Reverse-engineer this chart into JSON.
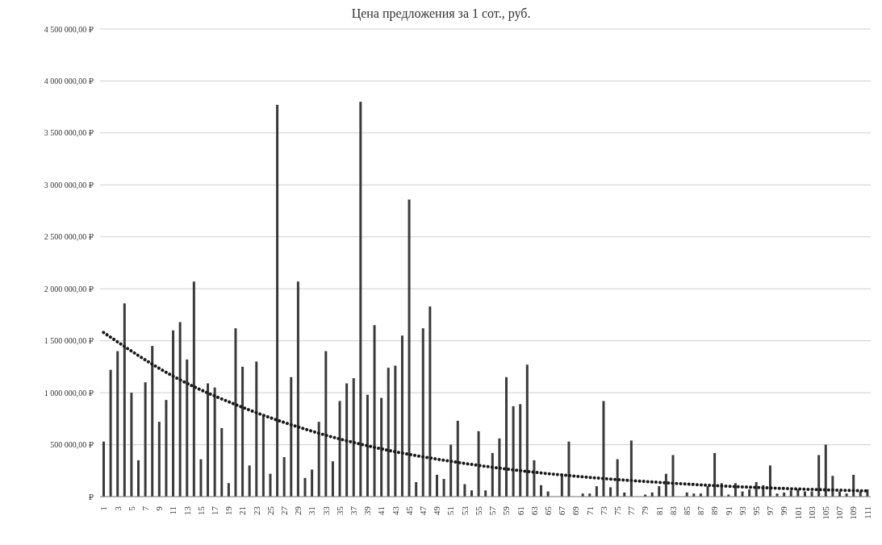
{
  "chart_data": {
    "type": "bar",
    "title": "Цена предложения за 1 сот., руб.",
    "categories": [
      "1",
      null,
      "3",
      null,
      "5",
      null,
      "7",
      null,
      "9",
      null,
      "11",
      null,
      "13",
      null,
      "15",
      null,
      "17",
      null,
      "19",
      null,
      "21",
      null,
      "23",
      null,
      "25",
      null,
      "27",
      null,
      "29",
      null,
      "31",
      null,
      "33",
      null,
      "35",
      null,
      "37",
      null,
      "39",
      null,
      "41",
      null,
      "43",
      null,
      "45",
      null,
      "47",
      null,
      "49",
      null,
      "51",
      null,
      "53",
      null,
      "55",
      null,
      "57",
      null,
      "59",
      null,
      "61",
      null,
      "63",
      null,
      "65",
      null,
      "67",
      null,
      "69",
      null,
      "71",
      null,
      "73",
      null,
      "75",
      null,
      "77",
      null,
      "79",
      null,
      "81",
      null,
      "83",
      null,
      "85",
      null,
      "87",
      null,
      "89",
      null,
      "91",
      null,
      "93",
      null,
      "95",
      null,
      "97",
      null,
      "99",
      null,
      "101",
      null,
      "103",
      null,
      "105",
      null,
      "107",
      null,
      "109",
      null,
      "111"
    ],
    "series": [
      {
        "color": "#3a3a3a",
        "values": [
          530000,
          1220000,
          1400000,
          1860000,
          1000000,
          350000,
          1100000,
          1450000,
          720000,
          930000,
          1600000,
          1680000,
          1320000,
          2070000,
          360000,
          1090000,
          1050000,
          660000,
          130000,
          1620000,
          1250000,
          300000,
          1300000,
          780000,
          220000,
          3770000,
          380000,
          1150000,
          2070000,
          180000,
          260000,
          720000,
          1400000,
          340000,
          920000,
          1090000,
          1140000,
          3800000,
          980000,
          1650000,
          950000,
          1240000,
          1260000,
          1550000,
          2860000,
          140000,
          1620000,
          1830000,
          210000,
          170000,
          500000,
          730000,
          120000,
          60000,
          630000,
          60000,
          420000,
          560000,
          1150000,
          870000,
          890000,
          1270000,
          350000,
          110000,
          50000,
          null,
          220000,
          530000,
          null,
          30000,
          30000,
          100000,
          920000,
          90000,
          360000,
          40000,
          540000,
          null,
          20000,
          40000,
          100000,
          220000,
          400000,
          null,
          40000,
          30000,
          30000,
          100000,
          420000,
          130000,
          20000,
          130000,
          50000,
          70000,
          140000,
          110000,
          300000,
          30000,
          40000,
          60000,
          70000,
          50000,
          50000,
          400000,
          500000,
          200000,
          50000,
          30000,
          210000,
          50000,
          70000
        ]
      },
      {
        "type": "line",
        "color": "#1a1a1a",
        "line_style": "dotted",
        "marker": "none",
        "x": [
          "1",
          "11",
          "21",
          "31",
          "41",
          "51",
          "61",
          "71",
          "81",
          "91",
          "101",
          "111"
        ],
        "values": [
          1580000,
          1160000,
          860000,
          630000,
          460000,
          340000,
          250000,
          185000,
          137000,
          100000,
          74000,
          55000
        ]
      }
    ],
    "ylim": [
      0,
      4500000
    ],
    "yticks": [
      {
        "value": 0,
        "label": "₽"
      },
      {
        "value": 500000,
        "label": "500 000,00 ₽"
      },
      {
        "value": 1000000,
        "label": "1 000 000,00 ₽"
      },
      {
        "value": 1500000,
        "label": "1 500 000,00 ₽"
      },
      {
        "value": 2000000,
        "label": "2 000 000,00 ₽"
      },
      {
        "value": 2500000,
        "label": "2 500 000,00 ₽"
      },
      {
        "value": 3000000,
        "label": "3 000 000,00 ₽"
      },
      {
        "value": 3500000,
        "label": "3 500 000,00 ₽"
      },
      {
        "value": 4000000,
        "label": "4 000 000,00 ₽"
      },
      {
        "value": 4500000,
        "label": "4 500 000,00 ₽"
      }
    ],
    "grid": "y"
  }
}
